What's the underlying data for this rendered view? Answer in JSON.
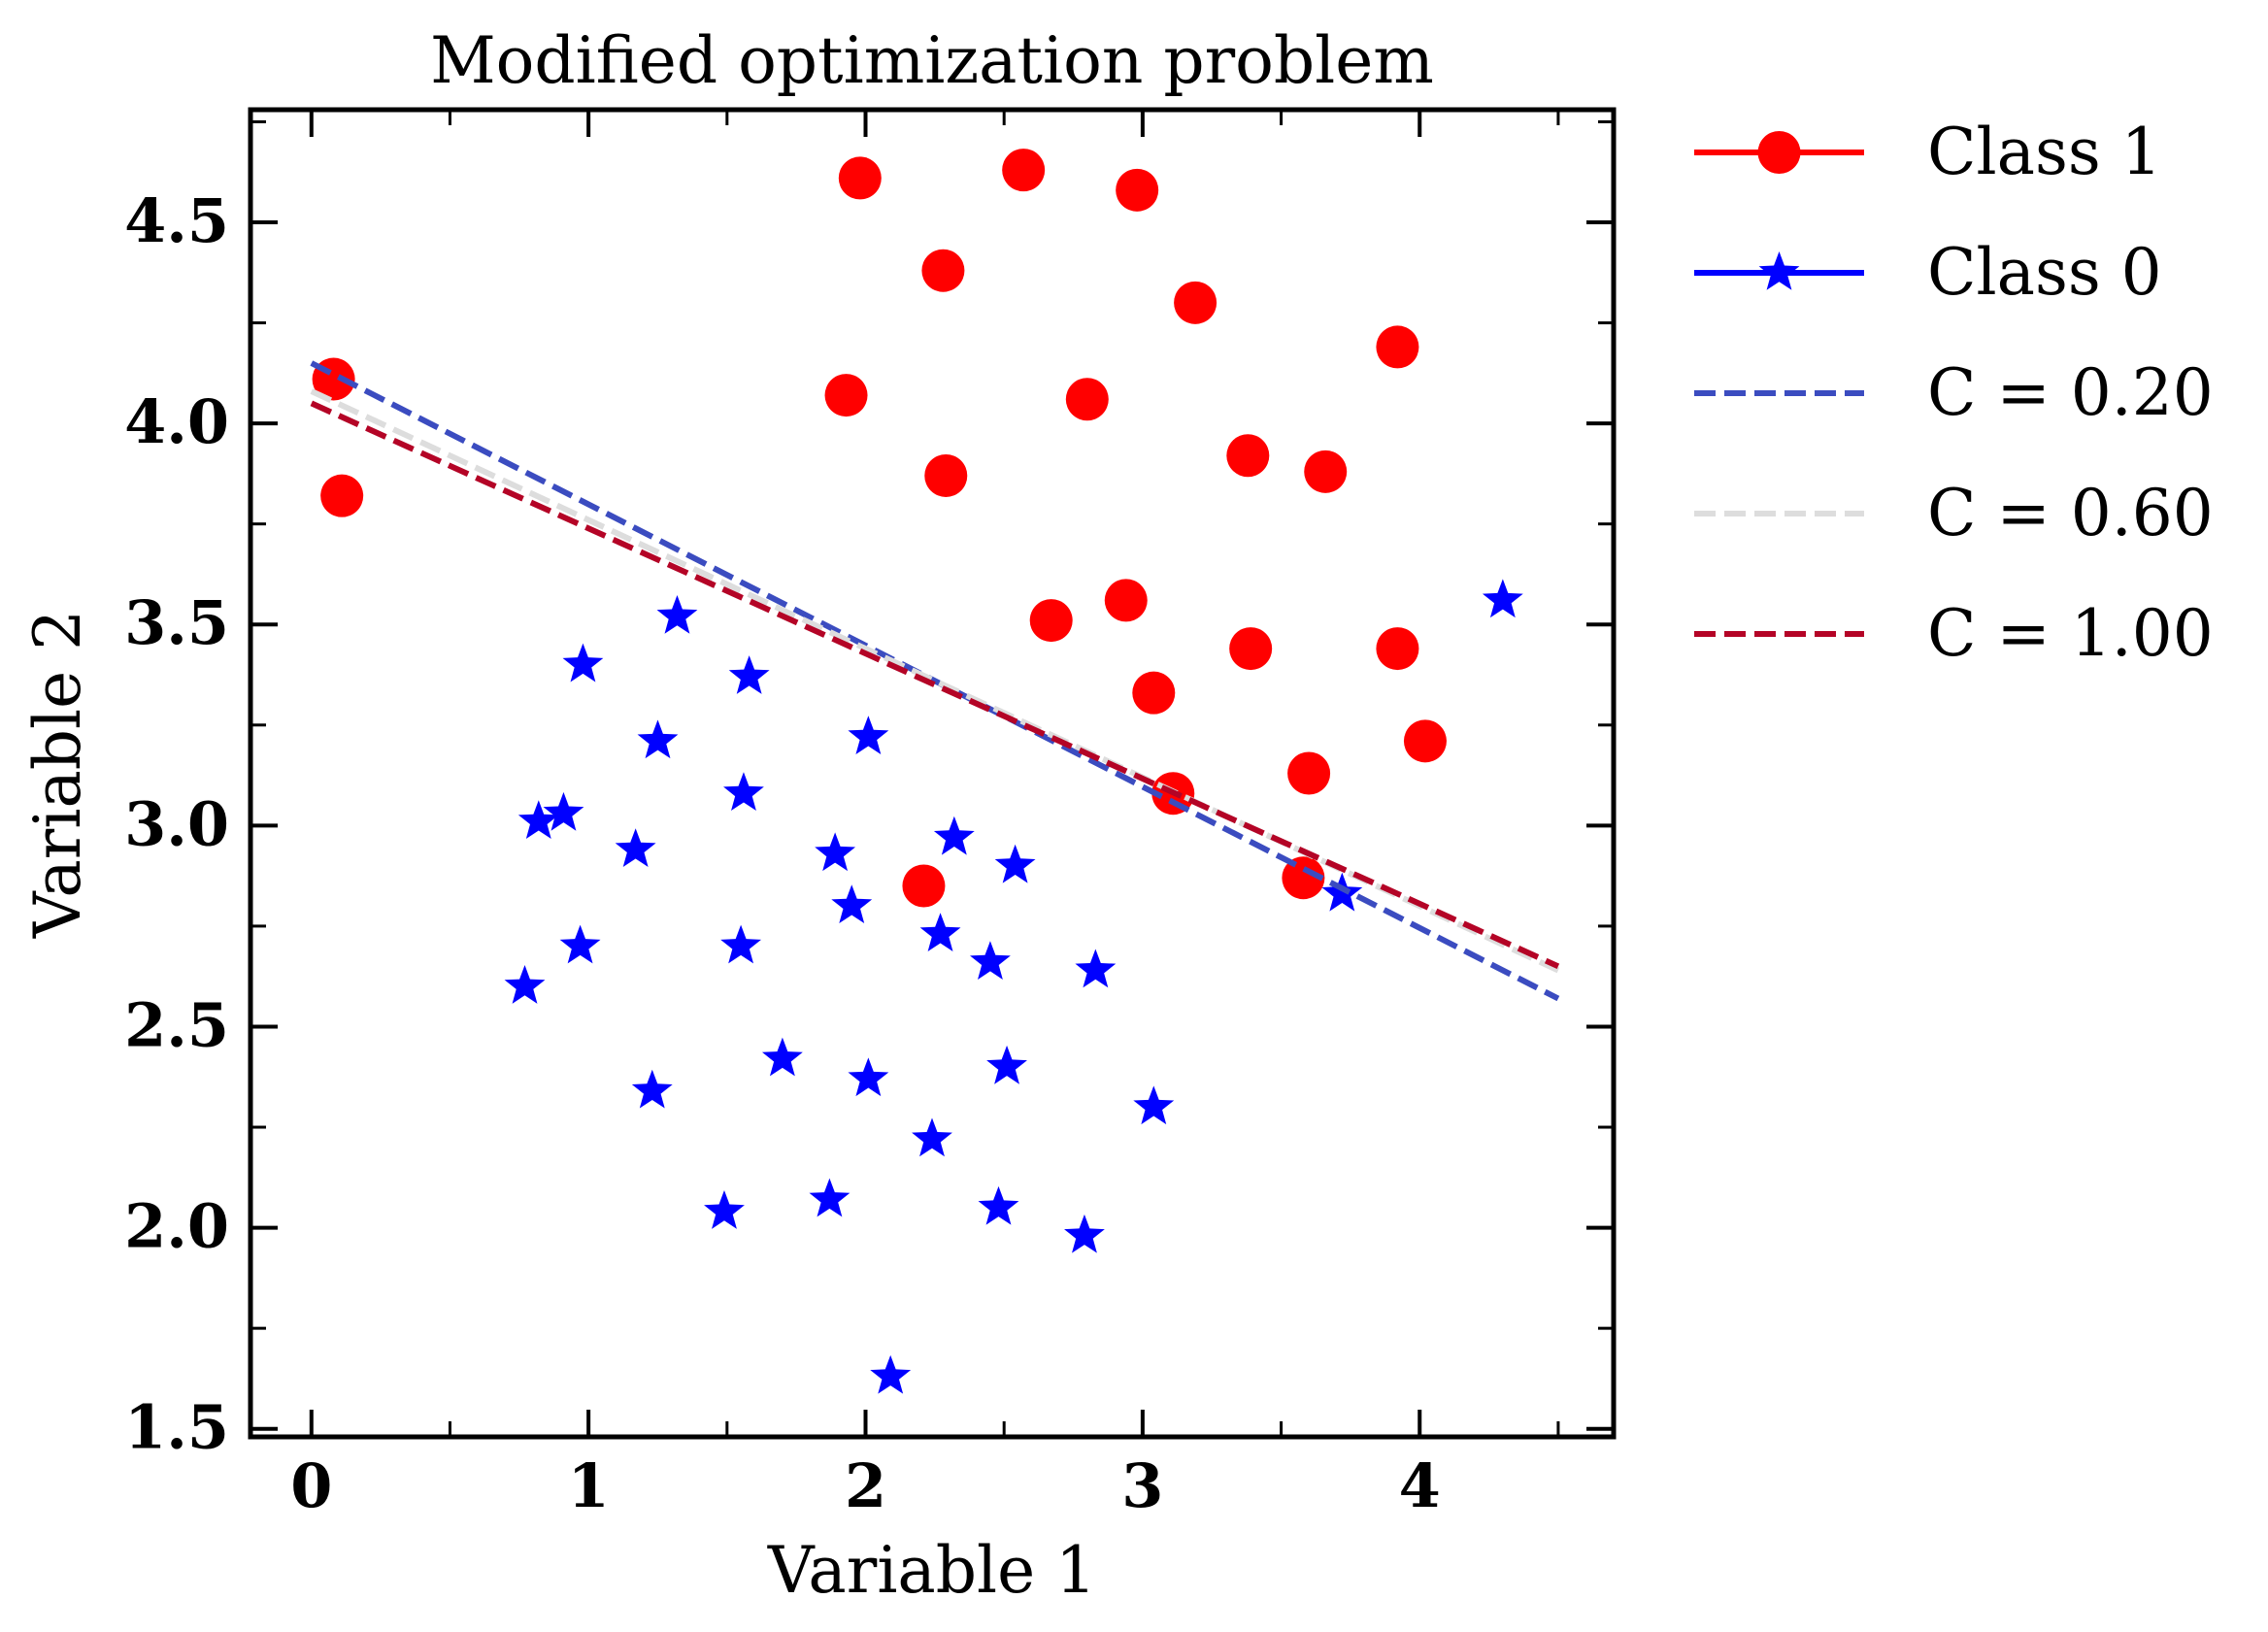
{
  "chart_data": {
    "type": "scatter",
    "title": "Modified optimization problem",
    "xlabel": "Variable 1",
    "ylabel": "Variable 2",
    "xlim": [
      -0.22,
      4.7
    ],
    "ylim": [
      1.48,
      4.78
    ],
    "xticks": [
      0,
      1,
      2,
      3,
      4
    ],
    "xtick_labels": [
      "0",
      "1",
      "2",
      "3",
      "4"
    ],
    "yticks": [
      1.5,
      2.0,
      2.5,
      3.0,
      3.5,
      4.0,
      4.5
    ],
    "ytick_labels": [
      "1.5",
      "2.0",
      "2.5",
      "3.0",
      "3.5",
      "4.0",
      "4.5"
    ],
    "x_minor_ticks": [
      0.5,
      1.5,
      2.5,
      3.5,
      4.5
    ],
    "y_minor_ticks": [
      1.75,
      2.25,
      2.75,
      3.25,
      3.75,
      4.25,
      4.75
    ],
    "grid": false,
    "legend_position": "outside-right",
    "series": [
      {
        "name": "Class 1",
        "kind": "scatter",
        "marker": "circle",
        "color": "#ff0000",
        "points": [
          [
            0.08,
            4.11
          ],
          [
            0.11,
            3.82
          ],
          [
            1.98,
            4.61
          ],
          [
            2.57,
            4.63
          ],
          [
            2.98,
            4.58
          ],
          [
            2.28,
            4.38
          ],
          [
            3.19,
            4.3
          ],
          [
            3.92,
            4.19
          ],
          [
            1.93,
            4.07
          ],
          [
            2.8,
            4.06
          ],
          [
            2.29,
            3.87
          ],
          [
            3.38,
            3.92
          ],
          [
            3.66,
            3.88
          ],
          [
            2.67,
            3.51
          ],
          [
            2.94,
            3.56
          ],
          [
            3.39,
            3.44
          ],
          [
            3.92,
            3.44
          ],
          [
            3.04,
            3.33
          ],
          [
            4.02,
            3.21
          ],
          [
            3.6,
            3.13
          ],
          [
            3.11,
            3.08
          ],
          [
            2.21,
            2.85
          ],
          [
            3.58,
            2.87
          ]
        ]
      },
      {
        "name": "Class 0",
        "kind": "scatter",
        "marker": "star",
        "color": "#0000ff",
        "points": [
          [
            4.3,
            3.56
          ],
          [
            1.32,
            3.52
          ],
          [
            0.98,
            3.4
          ],
          [
            1.58,
            3.37
          ],
          [
            1.25,
            3.21
          ],
          [
            2.01,
            3.22
          ],
          [
            1.56,
            3.08
          ],
          [
            0.82,
            3.01
          ],
          [
            0.91,
            3.03
          ],
          [
            1.17,
            2.94
          ],
          [
            1.89,
            2.93
          ],
          [
            2.32,
            2.97
          ],
          [
            2.54,
            2.9
          ],
          [
            1.95,
            2.8
          ],
          [
            3.72,
            2.83
          ],
          [
            0.97,
            2.7
          ],
          [
            1.55,
            2.7
          ],
          [
            2.27,
            2.73
          ],
          [
            2.45,
            2.66
          ],
          [
            2.83,
            2.64
          ],
          [
            0.77,
            2.6
          ],
          [
            1.7,
            2.42
          ],
          [
            2.51,
            2.4
          ],
          [
            2.01,
            2.37
          ],
          [
            1.23,
            2.34
          ],
          [
            3.04,
            2.3
          ],
          [
            2.24,
            2.22
          ],
          [
            1.49,
            2.04
          ],
          [
            1.87,
            2.07
          ],
          [
            2.48,
            2.05
          ],
          [
            2.79,
            1.98
          ],
          [
            2.09,
            1.63
          ]
        ]
      },
      {
        "name": "C = 0.20",
        "kind": "line",
        "linestyle": "dashed",
        "color": "#3b4cc0",
        "points": [
          [
            0.0,
            4.15
          ],
          [
            4.5,
            2.57
          ]
        ]
      },
      {
        "name": "C = 0.60",
        "kind": "line",
        "linestyle": "dashed",
        "color": "#dddddd",
        "points": [
          [
            0.0,
            4.08
          ],
          [
            4.5,
            2.64
          ]
        ]
      },
      {
        "name": "C = 1.00",
        "kind": "line",
        "linestyle": "dashed",
        "color": "#b40426",
        "points": [
          [
            0.0,
            4.05
          ],
          [
            4.5,
            2.65
          ]
        ]
      }
    ]
  }
}
